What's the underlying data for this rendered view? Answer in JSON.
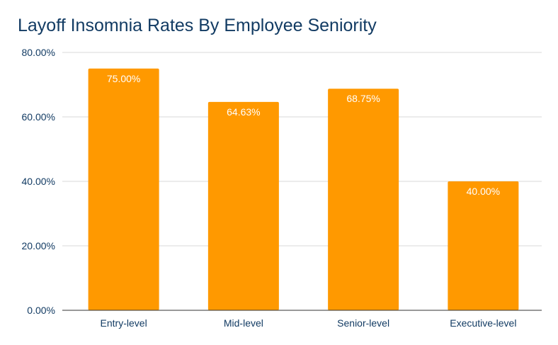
{
  "chart_data": {
    "type": "bar",
    "title": "Layoff Insomnia Rates By Employee Seniority",
    "xlabel": "",
    "ylabel": "",
    "categories": [
      "Entry-level",
      "Mid-level",
      "Senior-level",
      "Executive-level"
    ],
    "values": [
      75.0,
      64.63,
      68.75,
      40.0
    ],
    "data_labels": [
      "75.00%",
      "64.63%",
      "68.75%",
      "40.00%"
    ],
    "ylim": [
      0,
      80
    ],
    "yticks": [
      0,
      20,
      40,
      60,
      80
    ],
    "ytick_labels": [
      "0.00%",
      "20.00%",
      "40.00%",
      "60.00%",
      "80.00%"
    ],
    "grid": true,
    "legend": "none",
    "bar_color": "#FF9900",
    "title_color": "#123B63"
  }
}
